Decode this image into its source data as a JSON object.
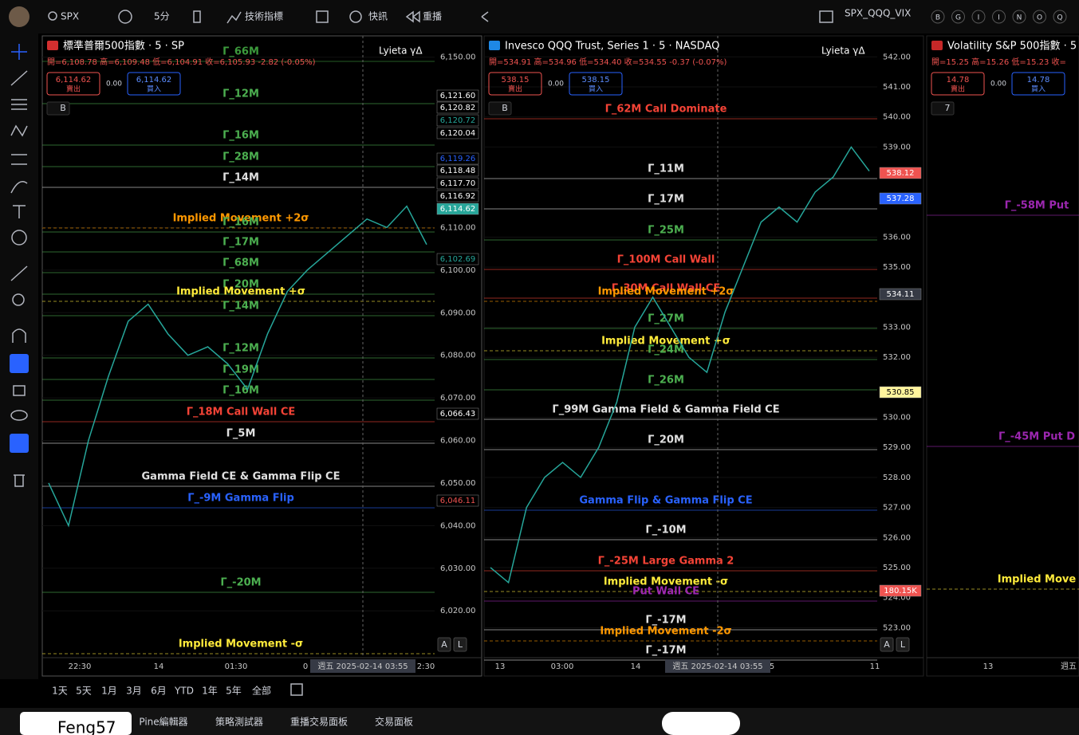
{
  "toolbar": {
    "symbol": "SPX",
    "interval": "5分",
    "indicators": "技術指標",
    "alerts": "快訊",
    "replay": "重播",
    "layout_symbols": "SPX_QQQ_VIX",
    "letters": [
      "B",
      "G",
      "I",
      "I",
      "N",
      "O",
      "Q"
    ]
  },
  "auto_buttons": [
    "A",
    "L"
  ],
  "panes": [
    {
      "title": "標準普爾500指數 · 5 · SP",
      "ohlc": "開=6,108.78 高=6,109.48 低=6,104.91 收=6,105.93 -2.82 (-0.05%)",
      "sell_price": "6,114.62",
      "sell_label": "賣出",
      "spread": "0.00",
      "buy_price": "6,114.62",
      "buy_label": "買入",
      "indicator": "Lyieta γΔ",
      "collapse": "B",
      "ylim": [
        6009,
        6155
      ],
      "yticks": [
        {
          "value": 6150,
          "label": "6,150.00"
        },
        {
          "value": 6110,
          "label": "6,110.00"
        },
        {
          "value": 6100,
          "label": "6,100.00"
        },
        {
          "value": 6090,
          "label": "6,090.00"
        },
        {
          "value": 6080,
          "label": "6,080.00"
        },
        {
          "value": 6070,
          "label": "6,070.00"
        },
        {
          "value": 6060,
          "label": "6,060.00"
        },
        {
          "value": 6050,
          "label": "6,050.00"
        },
        {
          "value": 6040,
          "label": "6,040.00"
        },
        {
          "value": 6030,
          "label": "6,030.00"
        },
        {
          "value": 6020,
          "label": "6,020.00"
        }
      ],
      "price_badges": [
        {
          "label": "6,121.60",
          "bg": "#000",
          "fg": "#fff"
        },
        {
          "label": "6,120.82",
          "bg": "#000",
          "fg": "#fff"
        },
        {
          "label": "6,120.72",
          "bg": "#000",
          "fg": "#26a69a"
        },
        {
          "label": "6,120.04",
          "bg": "#000",
          "fg": "#fff"
        },
        {
          "label": "6,119.26",
          "bg": "#000",
          "fg": "#2962ff"
        },
        {
          "label": "6,118.48",
          "bg": "#000",
          "fg": "#fff"
        },
        {
          "label": "6,117.70",
          "bg": "#000",
          "fg": "#fff"
        },
        {
          "label": "6,116.92",
          "bg": "#000",
          "fg": "#fff"
        },
        {
          "label": "6,114.62",
          "bg": "#26a69a",
          "fg": "#fff"
        },
        {
          "label": "6,102.69",
          "bg": "#000",
          "fg": "#26a69a"
        },
        {
          "label": "6,066.43",
          "bg": "#000",
          "fg": "#fff"
        },
        {
          "label": "6,046.11",
          "bg": "#000",
          "fg": "#ef5350"
        }
      ],
      "levels": [
        {
          "label": "Γ_66M",
          "color": "#3c9a3c"
        },
        {
          "label": "Γ_12M",
          "color": "#4caf50"
        },
        {
          "label": "Γ_16M",
          "color": "#4caf50"
        },
        {
          "label": "Γ_28M",
          "color": "#4caf50"
        },
        {
          "label": "Γ_14M",
          "color": "#e0e0e0"
        },
        {
          "label": "Implied Movement +2σ",
          "color": "#ff9800"
        },
        {
          "label": "Γ_16M",
          "color": "#4caf50"
        },
        {
          "label": "Γ_17M",
          "color": "#4caf50"
        },
        {
          "label": "Γ_68M",
          "color": "#4caf50"
        },
        {
          "label": "Γ_20M",
          "color": "#4caf50"
        },
        {
          "label": "Implied Movement +σ",
          "color": "#ffeb3b"
        },
        {
          "label": "Γ_14M",
          "color": "#4caf50"
        },
        {
          "label": "Γ_12M",
          "color": "#4caf50"
        },
        {
          "label": "Γ_19M",
          "color": "#4caf50"
        },
        {
          "label": "Γ_16M",
          "color": "#4caf50"
        },
        {
          "label": "Γ_18M  Call Wall CE",
          "color": "#f44336"
        },
        {
          "label": "Γ_5M",
          "color": "#e0e0e0"
        },
        {
          "label": "Gamma Field CE & Gamma Flip CE",
          "color": "#e0e0e0"
        },
        {
          "label": "Γ_-9M  Gamma Flip",
          "color": "#2962ff"
        },
        {
          "label": "Γ_-20M",
          "color": "#4caf50"
        },
        {
          "label": "Implied Movement -σ",
          "color": "#ffeb3b"
        }
      ],
      "time_labels": [
        "22:30",
        "14",
        "01:30",
        "0",
        "2:30"
      ],
      "crosshair_time": "週五 2025-02-14  03:55",
      "close": [
        6050,
        6040,
        6060,
        6075,
        6088,
        6092,
        6085,
        6080,
        6082,
        6078,
        6072,
        6085,
        6095,
        6100,
        6104,
        6108,
        6112,
        6110,
        6115,
        6106
      ]
    },
    {
      "title": "Invesco QQQ Trust, Series 1 · 5 · NASDAQ",
      "ohlc": "開=534.91 高=534.96 低=534.40 收=534.55 -0.37 (-0.07%)",
      "sell_price": "538.15",
      "sell_label": "賣出",
      "spread": "0.00",
      "buy_price": "538.15",
      "buy_label": "買入",
      "indicator": "Lyieta γΔ",
      "collapse": "B",
      "ylim": [
        522,
        542.7
      ],
      "yticks": [
        {
          "value": 542,
          "label": "542.00"
        },
        {
          "value": 541,
          "label": "541.00"
        },
        {
          "value": 540,
          "label": "540.00"
        },
        {
          "value": 539,
          "label": "539.00"
        },
        {
          "value": 536,
          "label": "536.00"
        },
        {
          "value": 535,
          "label": "535.00"
        },
        {
          "value": 533,
          "label": "533.00"
        },
        {
          "value": 532,
          "label": "532.00"
        },
        {
          "value": 530,
          "label": "530.00"
        },
        {
          "value": 529,
          "label": "529.00"
        },
        {
          "value": 528,
          "label": "528.00"
        },
        {
          "value": 527,
          "label": "527.00"
        },
        {
          "value": 526,
          "label": "526.00"
        },
        {
          "value": 525,
          "label": "525.00"
        },
        {
          "value": 524,
          "label": "524.00"
        },
        {
          "value": 523,
          "label": "523.00"
        }
      ],
      "price_badges": [
        {
          "label": "538.12",
          "bg": "#ef5350",
          "fg": "#fff"
        },
        {
          "label": "537.28",
          "bg": "#2962ff",
          "fg": "#fff"
        },
        {
          "label": "534.11",
          "bg": "#363a45",
          "fg": "#fff"
        },
        {
          "label": "530.85",
          "bg": "#fff59d",
          "fg": "#000"
        },
        {
          "label": "180.15K",
          "bg": "#ef5350",
          "fg": "#fff"
        }
      ],
      "levels": [
        {
          "label": "Γ_62M  Call Dominate",
          "color": "#f44336"
        },
        {
          "label": "Γ_11M",
          "color": "#e0e0e0"
        },
        {
          "label": "Γ_17M",
          "color": "#e0e0e0"
        },
        {
          "label": "Γ_25M",
          "color": "#4caf50"
        },
        {
          "label": "Γ_100M  Call Wall",
          "color": "#f44336"
        },
        {
          "label": "Γ_30M  Call Wall CE",
          "color": "#f44336"
        },
        {
          "label": "Implied Movement +2σ",
          "color": "#ff9800"
        },
        {
          "label": "Γ_27M",
          "color": "#4caf50"
        },
        {
          "label": "Implied Movement +σ",
          "color": "#ffeb3b"
        },
        {
          "label": "Γ_24M",
          "color": "#4caf50"
        },
        {
          "label": "Γ_26M",
          "color": "#4caf50"
        },
        {
          "label": "Γ_99M  Gamma Field & Gamma Field CE",
          "color": "#e0e0e0"
        },
        {
          "label": "Γ_20M",
          "color": "#e0e0e0"
        },
        {
          "label": "Gamma Flip & Gamma Flip CE",
          "color": "#2962ff"
        },
        {
          "label": "Γ_-10M",
          "color": "#e0e0e0"
        },
        {
          "label": "Γ_-25M  Large Gamma 2",
          "color": "#f44336"
        },
        {
          "label": "Implied Movement -σ",
          "color": "#ffeb3b"
        },
        {
          "label": "Put Wall CE",
          "color": "#9c27b0"
        },
        {
          "label": "Γ_-17M",
          "color": "#e0e0e0"
        },
        {
          "label": "Implied Movement -2σ",
          "color": "#ff9800"
        },
        {
          "label": "Γ_-17M",
          "color": "#e0e0e0"
        }
      ],
      "time_labels": [
        "13",
        "03:00",
        "14",
        "5",
        "11"
      ],
      "crosshair_time": "週五 2025-02-14  03:55",
      "close": [
        525,
        524.5,
        527,
        528,
        528.5,
        528,
        529,
        530.5,
        533,
        534,
        533,
        532,
        531.5,
        533.5,
        535,
        536.5,
        537,
        536.5,
        537.5,
        538,
        539,
        538.2
      ]
    },
    {
      "title": "Volatility S&P 500指數 · 5",
      "ohlc": "開=15.25 高=15.26 低=15.23 收=",
      "sell_price": "14.78",
      "sell_label": "賣出",
      "spread": "0.00",
      "buy_price": "14.78",
      "buy_label": "買入",
      "collapse": "7",
      "levels": [
        {
          "label": "Γ_-58M  Put",
          "color": "#9c27b0"
        },
        {
          "label": "Γ_-45M  Put D",
          "color": "#9c27b0"
        },
        {
          "label": "Implied Move",
          "color": "#ffeb3b"
        }
      ],
      "time_labels": [
        "13",
        "週五"
      ]
    }
  ],
  "range_buttons": [
    "1天",
    "5天",
    "1月",
    "3月",
    "6月",
    "YTD",
    "1年",
    "5年",
    "全部"
  ],
  "tabs": [
    "Pine編輯器",
    "策略測試器",
    "重播交易面板",
    "交易面板"
  ],
  "user": "Feng57"
}
